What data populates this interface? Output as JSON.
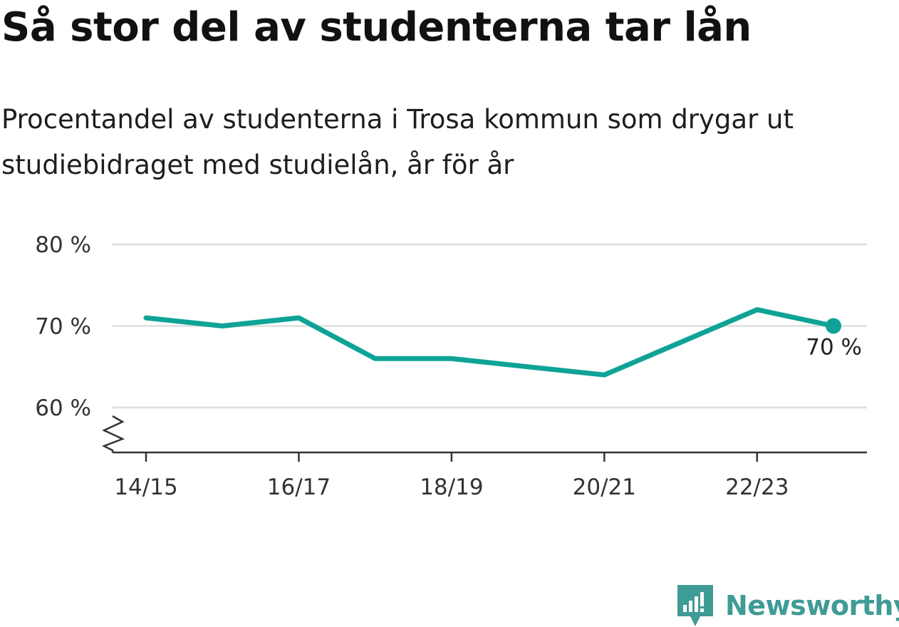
{
  "title": "Så stor del av studenterna tar lån",
  "subtitle": "Procentandel av studenterna i Trosa kommun som drygar ut studiebidraget med studielån, år för år",
  "colors": {
    "line": "#0fa397",
    "grid": "#dedede",
    "axis": "#333333",
    "logo": "#3f9b95"
  },
  "chart_data": {
    "type": "line",
    "title": "Så stor del av studenterna tar lån",
    "subtitle": "Procentandel av studenterna i Trosa kommun som drygar ut studiebidraget med studielån, år för år",
    "x": [
      "14/15",
      "15/16",
      "16/17",
      "17/18",
      "18/19",
      "19/20",
      "20/21",
      "21/22",
      "22/23",
      "23/24"
    ],
    "x_tick_labels": [
      "14/15",
      "16/17",
      "18/19",
      "20/21",
      "22/23"
    ],
    "series": [
      {
        "values": [
          71,
          70,
          71,
          66,
          66,
          65,
          64,
          68,
          72,
          70
        ]
      }
    ],
    "y_ticks": [
      60,
      70,
      80
    ],
    "y_tick_labels": [
      "60 %",
      "70 %",
      "80 %"
    ],
    "ylim": [
      54.5,
      80
    ],
    "y_axis_break": true,
    "grid": true,
    "end_label": "70 %"
  },
  "brand": {
    "name": "Newsworthy",
    "logo_icon": "newsworthy-logo-icon"
  }
}
